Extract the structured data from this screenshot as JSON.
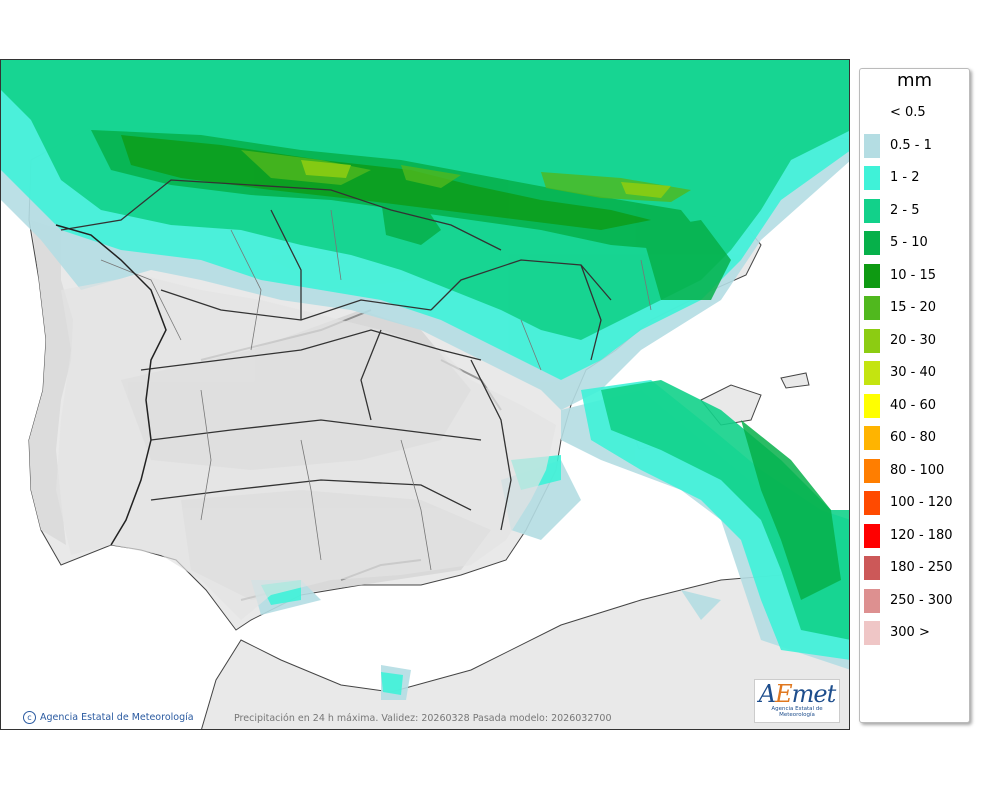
{
  "legend": {
    "unit": "mm",
    "items": [
      {
        "label": "< 0.5",
        "color": ""
      },
      {
        "label": "0.5 - 1",
        "color": "#b4dde3"
      },
      {
        "label": "1 - 2",
        "color": "#3ff2d8"
      },
      {
        "label": "2 - 5",
        "color": "#12d18a"
      },
      {
        "label": "5 - 10",
        "color": "#06b04a"
      },
      {
        "label": "10 - 15",
        "color": "#0e9a12"
      },
      {
        "label": "15 - 20",
        "color": "#50b81e"
      },
      {
        "label": "20 - 30",
        "color": "#8ccc12"
      },
      {
        "label": "30 - 40",
        "color": "#c4e410"
      },
      {
        "label": "40 - 60",
        "color": "#ffff00"
      },
      {
        "label": "60 - 80",
        "color": "#ffb400"
      },
      {
        "label": "80 - 100",
        "color": "#ff7e00"
      },
      {
        "label": "100 - 120",
        "color": "#ff4a00"
      },
      {
        "label": "120 - 180",
        "color": "#ff0000"
      },
      {
        "label": "180 - 250",
        "color": "#cc5858"
      },
      {
        "label": "250 - 300",
        "color": "#dd9090"
      },
      {
        "label": "300 >",
        "color": "#efc6c6"
      }
    ]
  },
  "map": {
    "credit": "Agencia Estatal de Meteorología",
    "caption": "Precipitación en 24 h máxima. Validez: 20260328 Pasada modelo: 2026032700",
    "logo": {
      "a": "A",
      "e": "E",
      "met": "met",
      "sub": "Agencia Estatal de Meteorología"
    }
  },
  "colors": {
    "sea": "#ffffff",
    "land": "#e9e9e9",
    "relief": "#d2d2d2",
    "border": "#222222"
  }
}
